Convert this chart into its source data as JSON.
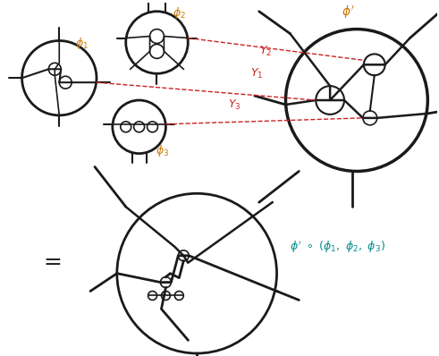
{
  "bg_color": "#ffffff",
  "line_color": "#1a1a1a",
  "red_color": "#cc2222",
  "phi_color": "#cc7700",
  "teal_color": "#008888",
  "fig_width": 4.91,
  "fig_height": 3.98,
  "dpi": 100
}
